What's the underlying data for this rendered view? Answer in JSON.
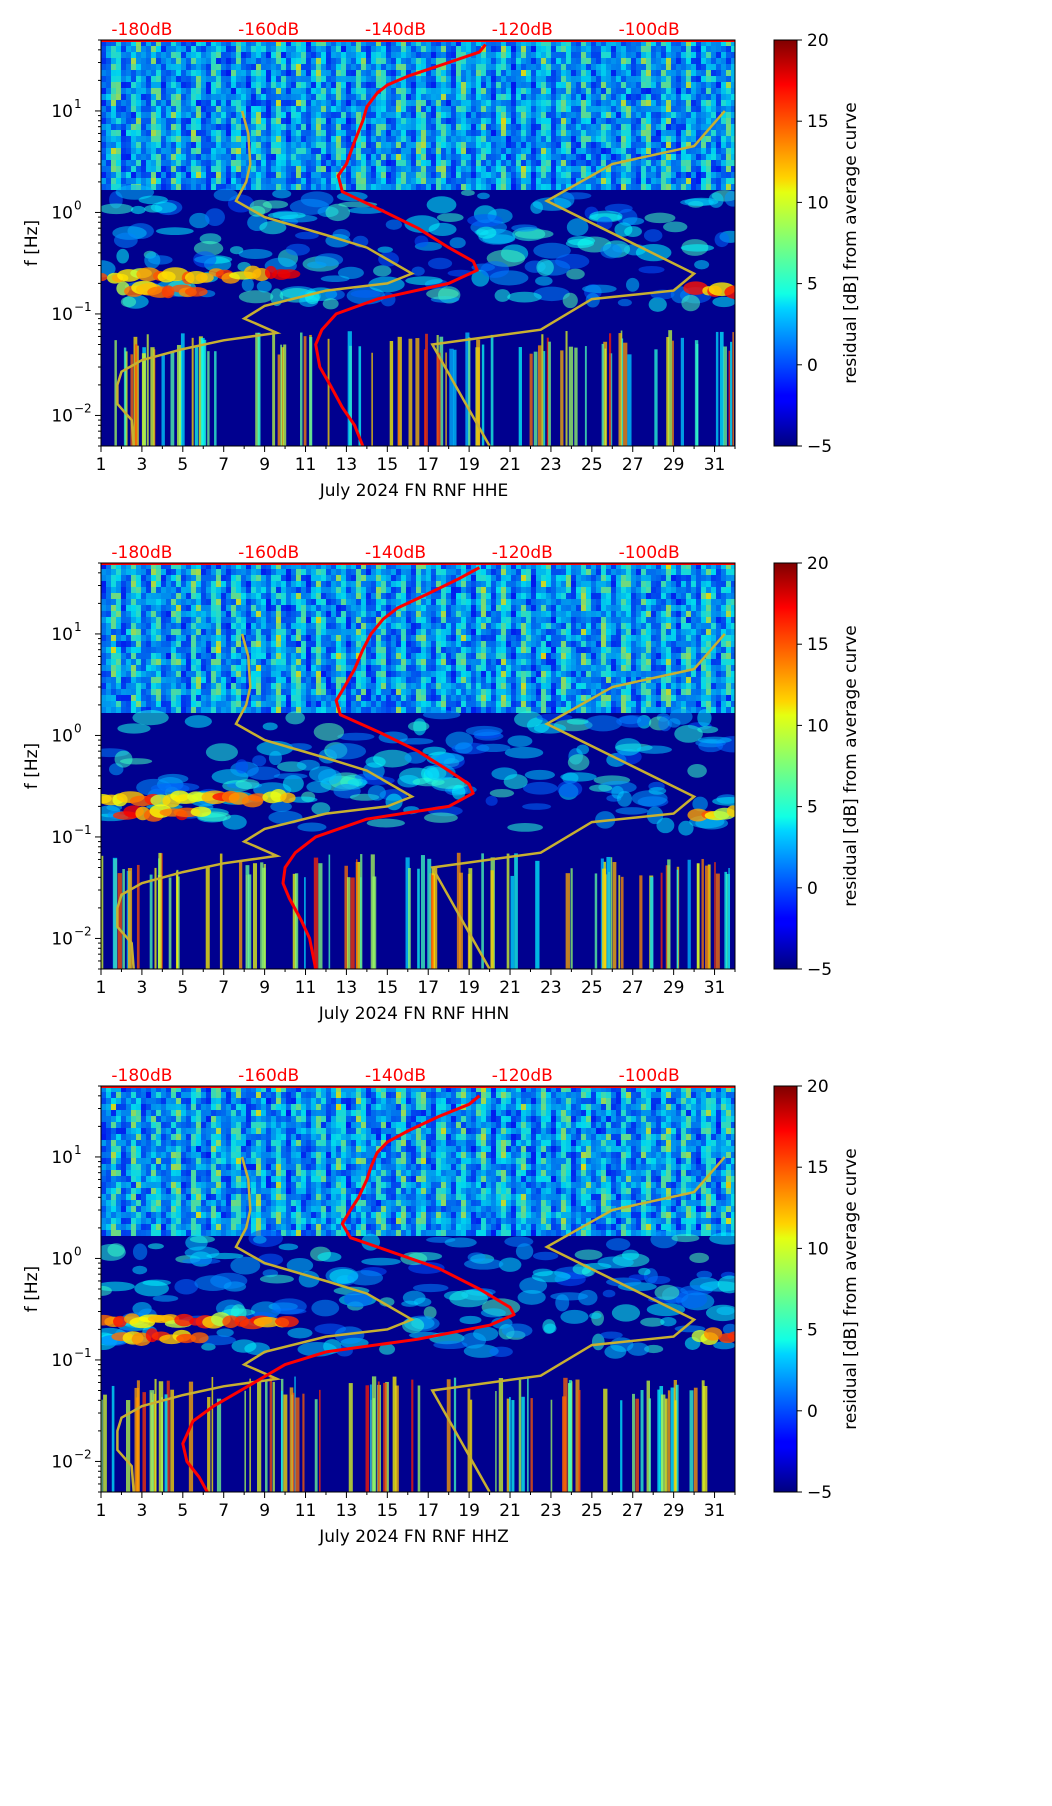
{
  "colors": {
    "red_curve": "#ff0000",
    "nlnm_nhnm_curve": "#c8b030",
    "top_axis_text": "#ff0000",
    "spectrogram_base": "#00008f"
  },
  "colorbar": {
    "label": "residual [dB] from average curve",
    "min": -5,
    "max": 20,
    "ticks": [
      "20",
      "15",
      "10",
      "5",
      "0",
      "−5"
    ],
    "tick_values": [
      20,
      15,
      10,
      5,
      0,
      -5
    ],
    "colormap": "jet"
  },
  "chart_data": [
    {
      "type": "heatmap",
      "panel": "HHE",
      "xlabel": "July 2024 FN RNF  HHE",
      "ylabel": "f [Hz]",
      "x_range": [
        1,
        32
      ],
      "x_ticks": [
        "1",
        "3",
        "5",
        "7",
        "9",
        "11",
        "13",
        "15",
        "17",
        "19",
        "21",
        "23",
        "25",
        "27",
        "29",
        "31"
      ],
      "y_range_hz": [
        0.005,
        50
      ],
      "y_scale": "log",
      "y_ticks": [
        {
          "value": 10,
          "base": "10",
          "exp": "1"
        },
        {
          "value": 1,
          "base": "10",
          "exp": "0"
        },
        {
          "value": 0.1,
          "base": "10",
          "exp": "−1"
        },
        {
          "value": 0.01,
          "base": "10",
          "exp": "−2"
        }
      ],
      "top_axis_label_text": [
        "-180dB",
        "-160dB",
        "-140dB",
        "-120dB",
        "-100dB"
      ],
      "top_axis_values_db": [
        -180,
        -160,
        -140,
        -120,
        -100
      ],
      "red_curve_day_vs_freq": [
        [
          19.8,
          45
        ],
        [
          19.5,
          38
        ],
        [
          18,
          30
        ],
        [
          16,
          22
        ],
        [
          15,
          18
        ],
        [
          14.5,
          15
        ],
        [
          14,
          11
        ],
        [
          13.8,
          8
        ],
        [
          13.4,
          5
        ],
        [
          13,
          3
        ],
        [
          12.6,
          2.3
        ],
        [
          12.8,
          1.6
        ],
        [
          14.5,
          1.1
        ],
        [
          16.5,
          0.7
        ],
        [
          18,
          0.45
        ],
        [
          19.2,
          0.33
        ],
        [
          19.4,
          0.27
        ],
        [
          18,
          0.2
        ],
        [
          14.5,
          0.14
        ],
        [
          12.5,
          0.1
        ],
        [
          11.8,
          0.07
        ],
        [
          11.5,
          0.05
        ],
        [
          11.7,
          0.03
        ],
        [
          12.2,
          0.02
        ],
        [
          12.8,
          0.012
        ],
        [
          13.4,
          0.008
        ],
        [
          13.8,
          0.005
        ]
      ],
      "hot_bands": [
        {
          "x0": 1,
          "x1": 10,
          "f": 0.24
        },
        {
          "x0": 2,
          "x1": 6,
          "f": 0.17
        },
        {
          "x0": 30,
          "x1": 32,
          "f": 0.17
        }
      ]
    },
    {
      "type": "heatmap",
      "panel": "HHN",
      "xlabel": "July 2024 FN RNF  HHN",
      "ylabel": "f [Hz]",
      "x_range": [
        1,
        32
      ],
      "x_ticks": [
        "1",
        "3",
        "5",
        "7",
        "9",
        "11",
        "13",
        "15",
        "17",
        "19",
        "21",
        "23",
        "25",
        "27",
        "29",
        "31"
      ],
      "y_range_hz": [
        0.005,
        50
      ],
      "y_scale": "log",
      "y_ticks": [
        {
          "value": 10,
          "base": "10",
          "exp": "1"
        },
        {
          "value": 1,
          "base": "10",
          "exp": "0"
        },
        {
          "value": 0.1,
          "base": "10",
          "exp": "−1"
        },
        {
          "value": 0.01,
          "base": "10",
          "exp": "−2"
        }
      ],
      "top_axis_label_text": [
        "-180dB",
        "-160dB",
        "-140dB",
        "-120dB",
        "-100dB"
      ],
      "top_axis_values_db": [
        -180,
        -160,
        -140,
        -120,
        -100
      ],
      "red_curve_day_vs_freq": [
        [
          19.5,
          45
        ],
        [
          18.5,
          35
        ],
        [
          17,
          25
        ],
        [
          15.5,
          18
        ],
        [
          14.8,
          14
        ],
        [
          14.2,
          10
        ],
        [
          13.8,
          7
        ],
        [
          13.4,
          4.5
        ],
        [
          12.9,
          3
        ],
        [
          12.5,
          2.2
        ],
        [
          12.7,
          1.6
        ],
        [
          14.5,
          1.1
        ],
        [
          16.5,
          0.7
        ],
        [
          18,
          0.45
        ],
        [
          19,
          0.33
        ],
        [
          19.2,
          0.27
        ],
        [
          18,
          0.2
        ],
        [
          14,
          0.15
        ],
        [
          11.5,
          0.1
        ],
        [
          10.5,
          0.07
        ],
        [
          10,
          0.05
        ],
        [
          9.9,
          0.035
        ],
        [
          10.2,
          0.025
        ],
        [
          10.8,
          0.015
        ],
        [
          11.2,
          0.01
        ],
        [
          11.5,
          0.005
        ]
      ],
      "hot_bands": [
        {
          "x0": 1,
          "x1": 10,
          "f": 0.24
        },
        {
          "x0": 2,
          "x1": 6,
          "f": 0.17
        },
        {
          "x0": 30,
          "x1": 32,
          "f": 0.17
        }
      ]
    },
    {
      "type": "heatmap",
      "panel": "HHZ",
      "xlabel": "July 2024 FN RNF  HHZ",
      "ylabel": "f [Hz]",
      "x_range": [
        1,
        32
      ],
      "x_ticks": [
        "1",
        "3",
        "5",
        "7",
        "9",
        "11",
        "13",
        "15",
        "17",
        "19",
        "21",
        "23",
        "25",
        "27",
        "29",
        "31"
      ],
      "y_range_hz": [
        0.005,
        50
      ],
      "y_scale": "log",
      "y_ticks": [
        {
          "value": 10,
          "base": "10",
          "exp": "1"
        },
        {
          "value": 1,
          "base": "10",
          "exp": "0"
        },
        {
          "value": 0.1,
          "base": "10",
          "exp": "−1"
        },
        {
          "value": 0.01,
          "base": "10",
          "exp": "−2"
        }
      ],
      "top_axis_label_text": [
        "-180dB",
        "-160dB",
        "-140dB",
        "-120dB",
        "-100dB"
      ],
      "top_axis_values_db": [
        -180,
        -160,
        -140,
        -120,
        -100
      ],
      "red_curve_day_vs_freq": [
        [
          19.5,
          40
        ],
        [
          19,
          33
        ],
        [
          17.5,
          25
        ],
        [
          16,
          18
        ],
        [
          15,
          14
        ],
        [
          14.5,
          11
        ],
        [
          14.2,
          8
        ],
        [
          14,
          6
        ],
        [
          13.6,
          4
        ],
        [
          13.2,
          3
        ],
        [
          12.8,
          2.2
        ],
        [
          13.2,
          1.6
        ],
        [
          15,
          1.2
        ],
        [
          17.5,
          0.8
        ],
        [
          19.5,
          0.5
        ],
        [
          21,
          0.33
        ],
        [
          21.2,
          0.28
        ],
        [
          20,
          0.22
        ],
        [
          16.5,
          0.16
        ],
        [
          12,
          0.12
        ],
        [
          10,
          0.09
        ],
        [
          8.5,
          0.06
        ],
        [
          6.5,
          0.035
        ],
        [
          5.5,
          0.025
        ],
        [
          5,
          0.015
        ],
        [
          5.2,
          0.01
        ],
        [
          5.8,
          0.007
        ],
        [
          6.2,
          0.005
        ]
      ],
      "hot_bands": [
        {
          "x0": 1,
          "x1": 10,
          "f": 0.24
        },
        {
          "x0": 2,
          "x1": 6,
          "f": 0.17
        },
        {
          "x0": 30,
          "x1": 32,
          "f": 0.17
        }
      ]
    }
  ],
  "noise_model_curves": {
    "nlnm_day_vs_freq": [
      [
        7.9,
        10
      ],
      [
        8.2,
        6
      ],
      [
        8.3,
        3
      ],
      [
        8.1,
        2
      ],
      [
        7.6,
        1.3
      ],
      [
        9,
        0.9
      ],
      [
        12,
        0.6
      ],
      [
        14,
        0.45
      ],
      [
        16.2,
        0.25
      ],
      [
        15,
        0.2
      ],
      [
        12,
        0.17
      ],
      [
        9,
        0.12
      ],
      [
        8,
        0.09
      ],
      [
        8.6,
        0.08
      ],
      [
        9.6,
        0.065
      ],
      [
        7,
        0.055
      ],
      [
        5,
        0.045
      ],
      [
        3,
        0.035
      ],
      [
        2,
        0.027
      ],
      [
        1.8,
        0.02
      ],
      [
        1.8,
        0.013
      ],
      [
        2.5,
        0.009
      ],
      [
        2.6,
        0.005
      ]
    ],
    "nhnm_day_vs_freq": [
      [
        31.5,
        10
      ],
      [
        30,
        4.5
      ],
      [
        26,
        3
      ],
      [
        22.8,
        1.3
      ],
      [
        30,
        0.25
      ],
      [
        29,
        0.17
      ],
      [
        25,
        0.14
      ],
      [
        22.5,
        0.07
      ],
      [
        17.2,
        0.05
      ],
      [
        20,
        0.005
      ]
    ]
  }
}
